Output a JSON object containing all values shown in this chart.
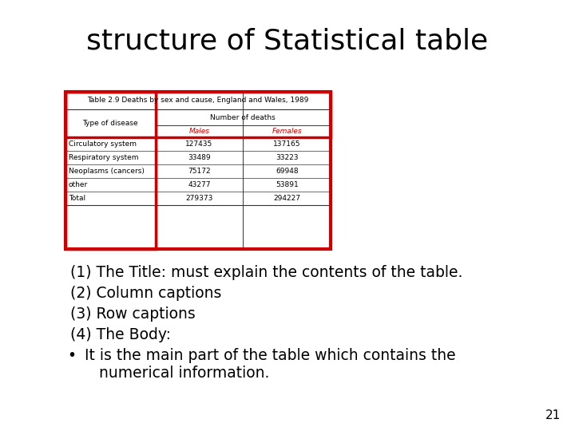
{
  "title": "structure of Statistical table",
  "table_title": "Table 2.9 Deaths by sex and cause, England and Wales, 1989",
  "col_header_main": "Number of deaths",
  "col_header_row": "Type of disease",
  "col_sub_headers": [
    "Males",
    "Females"
  ],
  "rows": [
    [
      "Circulatory system",
      "127435",
      "137165"
    ],
    [
      "Respiratory system",
      "33489",
      "33223"
    ],
    [
      "Neoplasms (cancers)",
      "75172",
      "69948"
    ],
    [
      "other",
      "43277",
      "53891"
    ],
    [
      "Total",
      "279373",
      "294227"
    ]
  ],
  "annotations_numbered": [
    "(1) The Title: must explain the contents of the table.",
    "(2) Column captions",
    "(3) Row captions",
    "(4) The Body:"
  ],
  "annotation_bullet": "It is the main part of the table which contains the\n   numerical information.",
  "page_number": "21",
  "red_color": "#CC0000",
  "title_fontsize": 26,
  "annotation_fontsize": 13.5,
  "table_fontsize": 7.5
}
